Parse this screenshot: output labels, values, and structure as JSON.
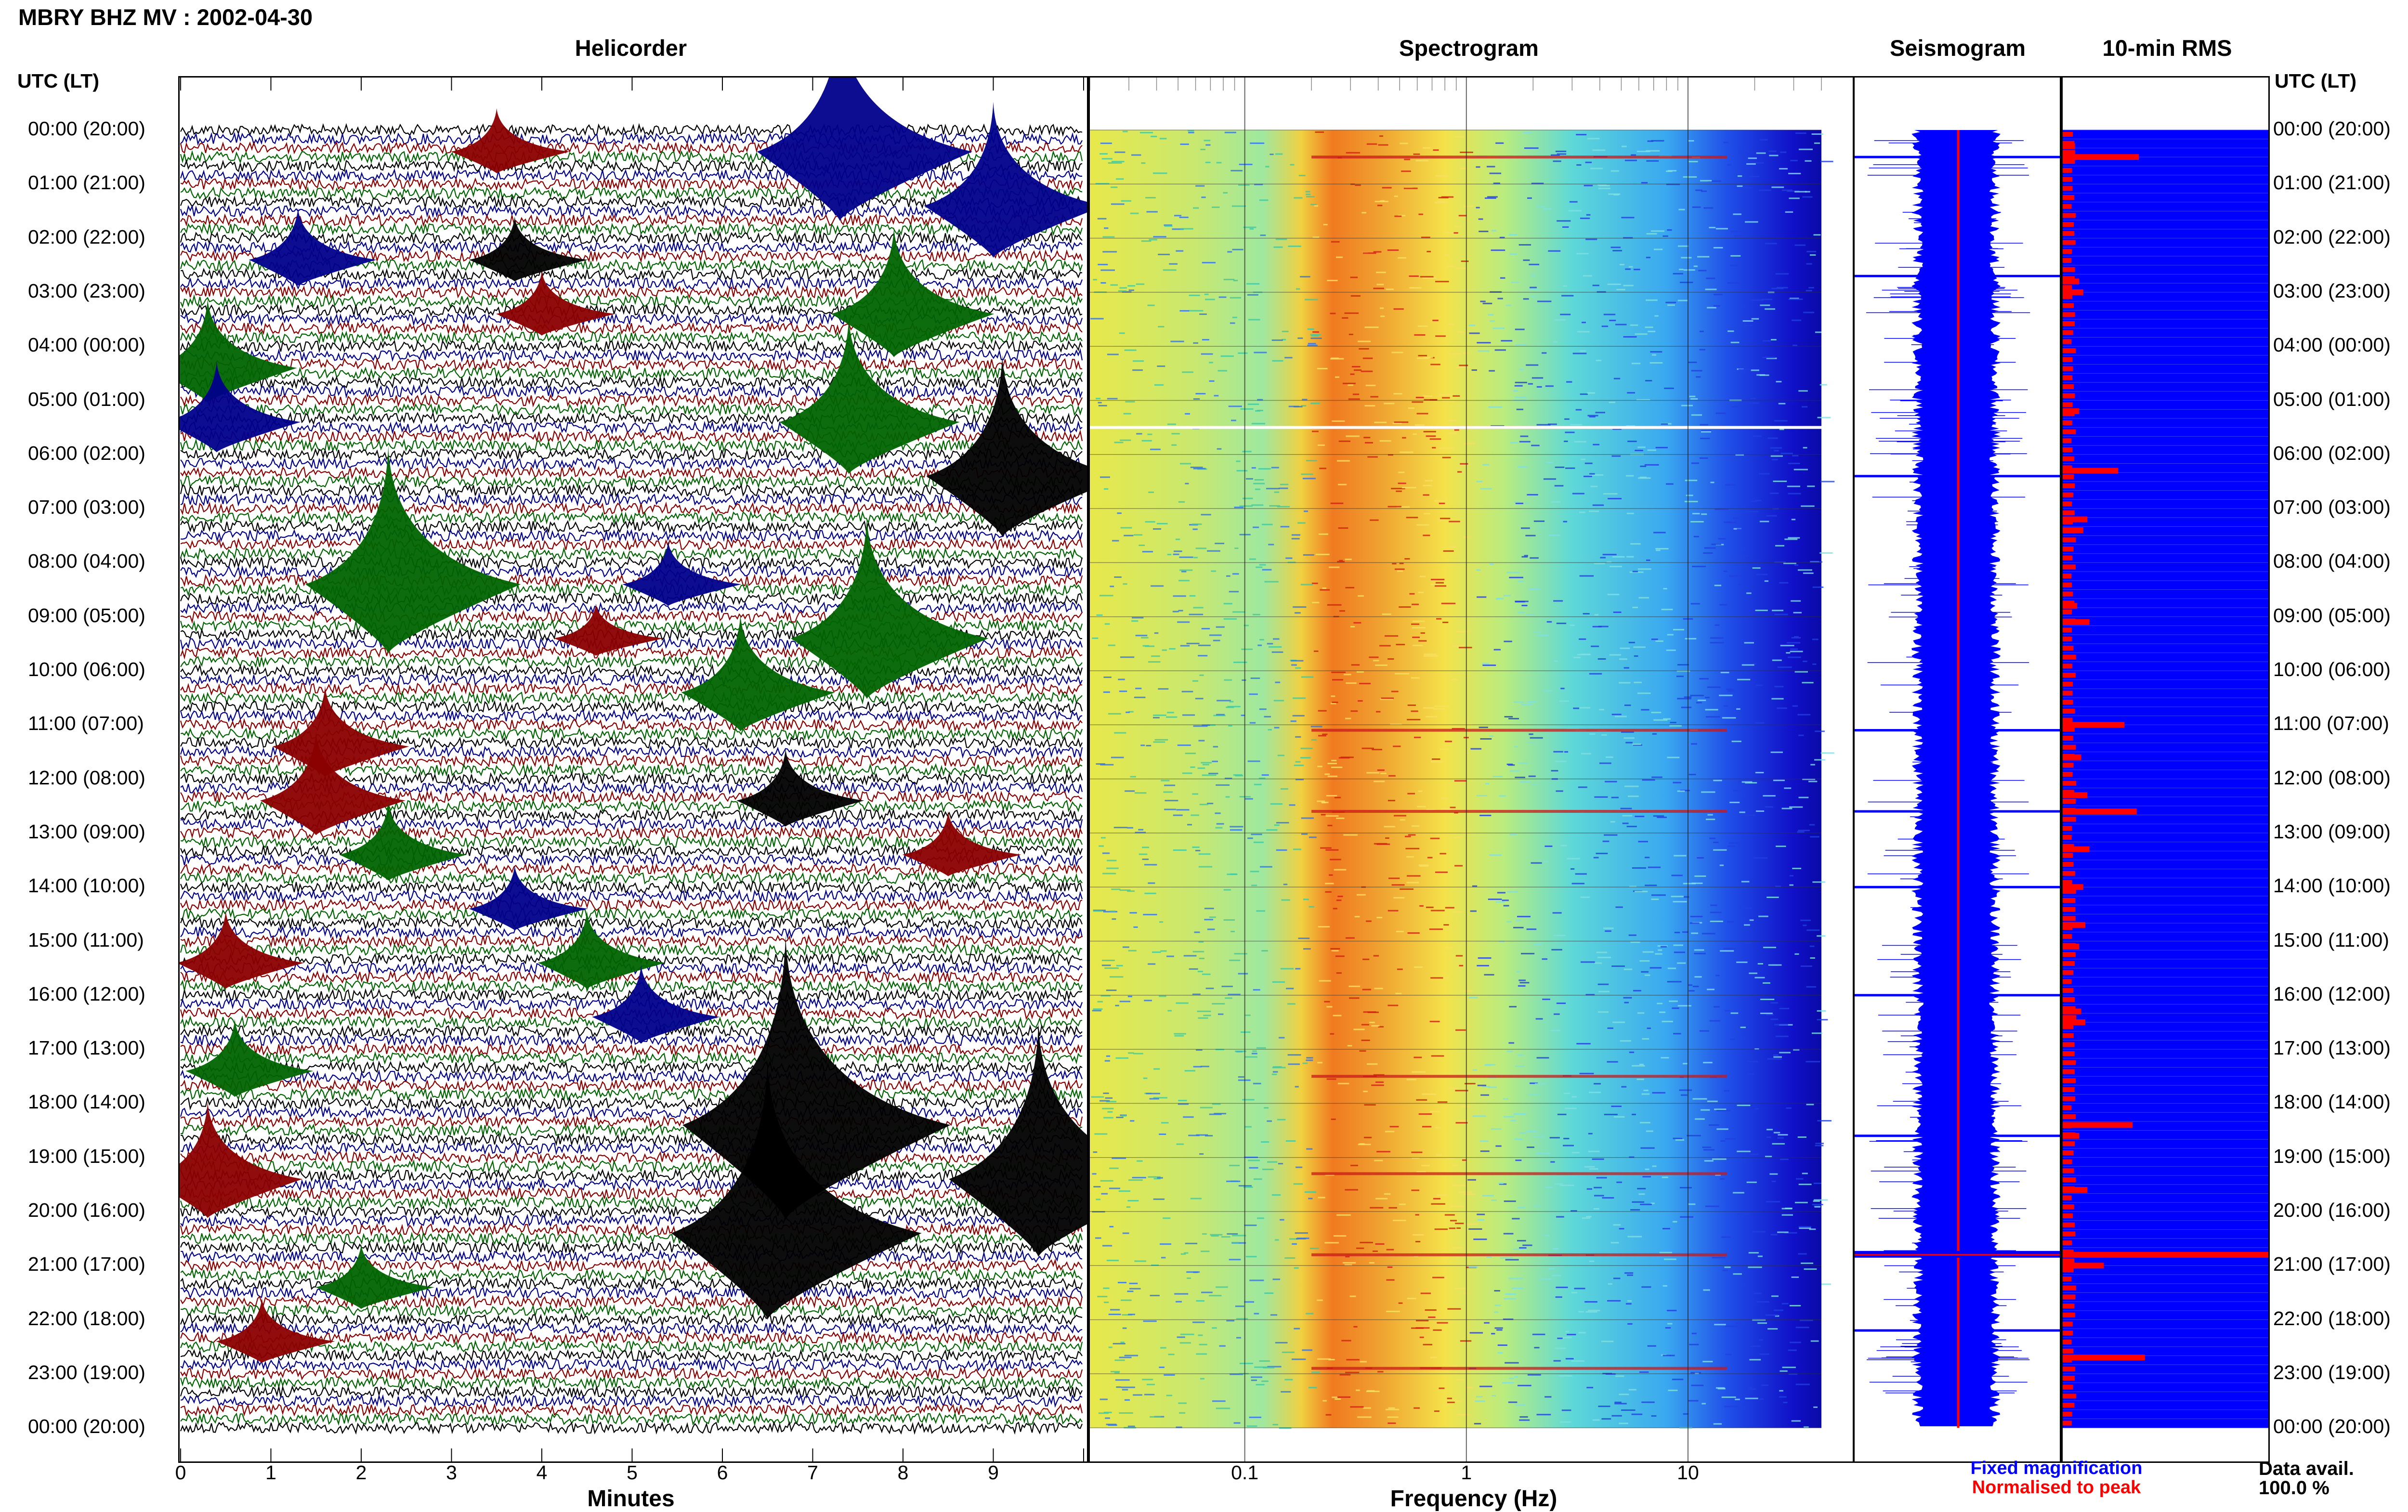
{
  "header": {
    "station": "MBRY BHZ MV : 2002-04-30",
    "utc_label": "UTC (LT)",
    "utc_label_right": "UTC (LT)"
  },
  "panels": {
    "helicorder": "Helicorder",
    "spectrogram": "Spectrogram",
    "seismogram": "Seismogram",
    "rms": "10-min RMS"
  },
  "time_labels": [
    "00:00 (20:00)",
    "01:00 (21:00)",
    "02:00 (22:00)",
    "03:00 (23:00)",
    "04:00 (00:00)",
    "05:00 (01:00)",
    "06:00 (02:00)",
    "07:00 (03:00)",
    "08:00 (04:00)",
    "09:00 (05:00)",
    "10:00 (06:00)",
    "11:00 (07:00)",
    "12:00 (08:00)",
    "13:00 (09:00)",
    "14:00 (10:00)",
    "15:00 (11:00)",
    "16:00 (12:00)",
    "17:00 (13:00)",
    "18:00 (14:00)",
    "19:00 (15:00)",
    "20:00 (16:00)",
    "21:00 (17:00)",
    "22:00 (18:00)",
    "23:00 (19:00)",
    "00:00 (20:00)"
  ],
  "legend": {
    "fixed": "Fixed magnification",
    "normalised": "Normalised to peak",
    "data_avail_label": "Data avail.",
    "data_avail_value": "100.0 %"
  },
  "colors": {
    "helicorder_traces": [
      "#000000",
      "#00008b",
      "#8b0000",
      "#006400"
    ],
    "seismogram_fill": "#0000ff",
    "seismogram_peak": "#ff0000",
    "rms_fill": "#0000ff",
    "rms_bars": "#ff0000",
    "legend_fixed": "#0000ff",
    "legend_normalised": "#ff0000"
  },
  "chart_data": [
    {
      "type": "line",
      "panel": "Helicorder",
      "xlabel": "Minutes",
      "x_ticks": [
        "0",
        "1",
        "2",
        "3",
        "4",
        "5",
        "6",
        "7",
        "8",
        "9"
      ],
      "xlim": [
        0,
        10
      ],
      "rows_per_hour": 6,
      "hours": 24,
      "events": [
        {
          "hour": 0,
          "minute": 7.3,
          "color_index": 1,
          "amp": 1.6
        },
        {
          "hour": 0,
          "minute": 3.5,
          "color_index": 2,
          "amp": 0.5
        },
        {
          "hour": 1,
          "minute": 9.0,
          "color_index": 1,
          "amp": 1.2
        },
        {
          "hour": 2,
          "minute": 1.3,
          "color_index": 1,
          "amp": 0.6
        },
        {
          "hour": 2,
          "minute": 3.7,
          "color_index": 0,
          "amp": 0.5
        },
        {
          "hour": 3,
          "minute": 7.9,
          "color_index": 3,
          "amp": 1.0
        },
        {
          "hour": 3,
          "minute": 4.0,
          "color_index": 2,
          "amp": 0.5
        },
        {
          "hour": 4,
          "minute": 0.3,
          "color_index": 3,
          "amp": 0.8
        },
        {
          "hour": 5,
          "minute": 7.4,
          "color_index": 3,
          "amp": 1.2
        },
        {
          "hour": 5,
          "minute": 0.4,
          "color_index": 1,
          "amp": 0.7
        },
        {
          "hour": 6,
          "minute": 9.1,
          "color_index": 0,
          "amp": 1.4
        },
        {
          "hour": 8,
          "minute": 2.3,
          "color_index": 3,
          "amp": 1.6
        },
        {
          "hour": 8,
          "minute": 5.4,
          "color_index": 1,
          "amp": 0.5
        },
        {
          "hour": 9,
          "minute": 7.6,
          "color_index": 3,
          "amp": 1.4
        },
        {
          "hour": 9,
          "minute": 4.6,
          "color_index": 2,
          "amp": 0.4
        },
        {
          "hour": 10,
          "minute": 6.2,
          "color_index": 3,
          "amp": 0.9
        },
        {
          "hour": 11,
          "minute": 1.6,
          "color_index": 2,
          "amp": 0.7
        },
        {
          "hour": 12,
          "minute": 1.5,
          "color_index": 2,
          "amp": 0.8
        },
        {
          "hour": 12,
          "minute": 6.7,
          "color_index": 0,
          "amp": 0.6
        },
        {
          "hour": 13,
          "minute": 2.3,
          "color_index": 3,
          "amp": 0.6
        },
        {
          "hour": 13,
          "minute": 8.5,
          "color_index": 2,
          "amp": 0.5
        },
        {
          "hour": 14,
          "minute": 3.7,
          "color_index": 1,
          "amp": 0.5
        },
        {
          "hour": 15,
          "minute": 4.5,
          "color_index": 3,
          "amp": 0.6
        },
        {
          "hour": 15,
          "minute": 0.5,
          "color_index": 2,
          "amp": 0.6
        },
        {
          "hour": 16,
          "minute": 5.1,
          "color_index": 1,
          "amp": 0.6
        },
        {
          "hour": 17,
          "minute": 0.6,
          "color_index": 3,
          "amp": 0.6
        },
        {
          "hour": 18,
          "minute": 6.7,
          "color_index": 0,
          "amp": 2.2
        },
        {
          "hour": 19,
          "minute": 0.3,
          "color_index": 2,
          "amp": 0.9
        },
        {
          "hour": 19,
          "minute": 9.5,
          "color_index": 0,
          "amp": 1.8
        },
        {
          "hour": 20,
          "minute": 6.5,
          "color_index": 0,
          "amp": 2.0
        },
        {
          "hour": 21,
          "minute": 2.0,
          "color_index": 3,
          "amp": 0.5
        },
        {
          "hour": 22,
          "minute": 0.9,
          "color_index": 2,
          "amp": 0.5
        }
      ]
    },
    {
      "type": "heatmap",
      "panel": "Spectrogram",
      "xlabel": "Frequency (Hz)",
      "x_scale": "log",
      "x_ticks": [
        "0.1",
        "1",
        "10"
      ],
      "xlim": [
        0.02,
        40
      ],
      "band_peak_hz": [
        0.25,
        0.45
      ],
      "secondary_peak_hz": 3.5,
      "highlight_hours": [
        0.5,
        5.5,
        11.1,
        12.6,
        17.5,
        19.3,
        20.8,
        22.9
      ]
    },
    {
      "type": "area",
      "panel": "Seismogram",
      "note_series": [
        "Fixed magnification",
        "Normalised to peak"
      ],
      "spikes_hours": [
        0.5,
        2.7,
        6.4,
        11.1,
        12.6,
        14.0,
        16.0,
        18.6,
        20.8,
        22.2
      ]
    },
    {
      "type": "bar",
      "panel": "10-min RMS",
      "x_unit": "fraction of panel width",
      "values": [
        [
          0.3,
          0.06
        ],
        [
          0.5,
          0.37
        ],
        [
          2.8,
          0.08
        ],
        [
          3.0,
          0.1
        ],
        [
          5.2,
          0.08
        ],
        [
          6.3,
          0.27
        ],
        [
          7.2,
          0.12
        ],
        [
          7.4,
          0.1
        ],
        [
          8.8,
          0.07
        ],
        [
          9.1,
          0.13
        ],
        [
          11.0,
          0.3
        ],
        [
          11.6,
          0.09
        ],
        [
          12.3,
          0.12
        ],
        [
          12.6,
          0.36
        ],
        [
          13.3,
          0.13
        ],
        [
          14.0,
          0.1
        ],
        [
          14.7,
          0.11
        ],
        [
          15.1,
          0.08
        ],
        [
          16.3,
          0.09
        ],
        [
          16.5,
          0.11
        ],
        [
          18.4,
          0.34
        ],
        [
          18.6,
          0.08
        ],
        [
          19.6,
          0.12
        ],
        [
          20.8,
          1.0
        ],
        [
          21.0,
          0.2
        ],
        [
          22.7,
          0.4
        ]
      ]
    }
  ]
}
